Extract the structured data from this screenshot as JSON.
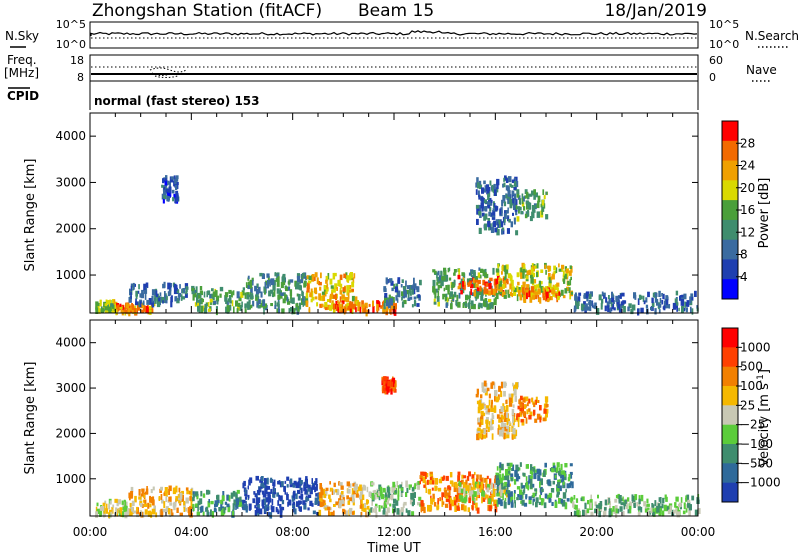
{
  "header": {
    "station": "Zhongshan Station (fitACF)",
    "beam": "Beam 15",
    "date": "18/Jan/2019"
  },
  "noise_panel": {
    "left_label": "N.Sky",
    "right_label": "N.Search",
    "left_ticks": [
      "10^5",
      "10^0"
    ],
    "right_ticks": [
      "10^5",
      "10^0"
    ]
  },
  "freq_panel": {
    "left_label_1": "Freq.",
    "left_label_2": "[MHz]",
    "left_ticks": [
      "18",
      "8"
    ],
    "right_label": "Nave",
    "right_ticks": [
      "60",
      "0"
    ]
  },
  "cpid_panel": {
    "label": "CPID",
    "text": "normal (fast stereo) 153"
  },
  "chart_data": [
    {
      "type": "heatmap",
      "quantity": "Power",
      "ylabel": "Slant Range [km]",
      "ylim": [
        180,
        4500
      ],
      "yticks": [
        1000,
        2000,
        3000,
        4000
      ],
      "xlim_hours": [
        0,
        24
      ],
      "xticks": [
        "00:00",
        "04:00",
        "08:00",
        "12:00",
        "16:00",
        "20:00",
        "00:00"
      ],
      "colorbar": {
        "label": "Power [dB]",
        "range": [
          0,
          32
        ],
        "ticks": [
          "4",
          "8",
          "12",
          "16",
          "20",
          "24",
          "28"
        ],
        "colors": [
          "#0000ff",
          "#1f3fb0",
          "#3a6ba0",
          "#3f8d6e",
          "#4a9f3a",
          "#d9d900",
          "#f0a000",
          "#f26a00",
          "#ff0000"
        ]
      },
      "regions": [
        {
          "t0": 0.2,
          "t1": 1.0,
          "r0": 200,
          "r1": 420,
          "v": 18
        },
        {
          "t0": 1.0,
          "t1": 2.5,
          "r0": 180,
          "r1": 350,
          "v": 26
        },
        {
          "t0": 1.5,
          "t1": 4.0,
          "r0": 350,
          "r1": 800,
          "v": 8
        },
        {
          "t0": 4.0,
          "t1": 6.0,
          "r0": 200,
          "r1": 700,
          "v": 14
        },
        {
          "t0": 6.0,
          "t1": 8.5,
          "r0": 200,
          "r1": 1000,
          "v": 12
        },
        {
          "t0": 8.5,
          "t1": 10.5,
          "r0": 200,
          "r1": 1000,
          "v": 22
        },
        {
          "t0": 9.5,
          "t1": 12.0,
          "r0": 180,
          "r1": 400,
          "v": 28
        },
        {
          "t0": 11.5,
          "t1": 13.0,
          "r0": 300,
          "r1": 900,
          "v": 10
        },
        {
          "t0": 13.5,
          "t1": 16.0,
          "r0": 300,
          "r1": 1100,
          "v": 14
        },
        {
          "t0": 14.5,
          "t1": 16.5,
          "r0": 600,
          "r1": 950,
          "v": 27
        },
        {
          "t0": 16.0,
          "t1": 19.0,
          "r0": 500,
          "r1": 1200,
          "v": 20
        },
        {
          "t0": 17.0,
          "t1": 18.5,
          "r0": 450,
          "r1": 700,
          "v": 26
        },
        {
          "t0": 19.0,
          "t1": 24.0,
          "r0": 200,
          "r1": 600,
          "v": 8
        },
        {
          "t0": 15.2,
          "t1": 16.8,
          "r0": 1900,
          "r1": 3100,
          "v": 8
        },
        {
          "t0": 16.8,
          "t1": 18.0,
          "r0": 2200,
          "r1": 2800,
          "v": 14
        },
        {
          "t0": 2.8,
          "t1": 3.4,
          "r0": 2600,
          "r1": 3100,
          "v": 6
        }
      ]
    },
    {
      "type": "heatmap",
      "quantity": "Velocity",
      "ylabel": "Slant Range [km]",
      "ylim": [
        180,
        4500
      ],
      "yticks": [
        1000,
        2000,
        3000,
        4000
      ],
      "xlim_hours": [
        0,
        24
      ],
      "xticks": [
        "00:00",
        "04:00",
        "08:00",
        "12:00",
        "16:00",
        "20:00",
        "00:00"
      ],
      "xlabel": "Time UT",
      "colorbar": {
        "label": "Velocity [m s",
        "label_sup": "-1",
        "label_end": "]",
        "ticks": [
          "1000",
          "500",
          "100",
          "25",
          "−25",
          "−100",
          "−500",
          "−1000"
        ],
        "colors": [
          "#1f3fb0",
          "#2f6a9a",
          "#3f8d6e",
          "#5bcc3a",
          "#c8c8b4",
          "#f5b800",
          "#f28000",
          "#ff4000",
          "#ff0000"
        ]
      },
      "regions": [
        {
          "t0": 0.2,
          "t1": 1.5,
          "r0": 180,
          "r1": 500,
          "v": 4
        },
        {
          "t0": 1.5,
          "t1": 4.0,
          "r0": 180,
          "r1": 800,
          "v": 5
        },
        {
          "t0": 4.0,
          "t1": 6.0,
          "r0": 200,
          "r1": 700,
          "v": 2
        },
        {
          "t0": 6.0,
          "t1": 9.0,
          "r0": 200,
          "r1": 1000,
          "v": 0
        },
        {
          "t0": 9.0,
          "t1": 11.0,
          "r0": 200,
          "r1": 900,
          "v": 5
        },
        {
          "t0": 11.0,
          "t1": 13.0,
          "r0": 200,
          "r1": 900,
          "v": 3
        },
        {
          "t0": 13.0,
          "t1": 16.0,
          "r0": 300,
          "r1": 1100,
          "v": 6
        },
        {
          "t0": 14.5,
          "t1": 16.5,
          "r0": 500,
          "r1": 900,
          "v": 4
        },
        {
          "t0": 16.0,
          "t1": 19.0,
          "r0": 400,
          "r1": 1300,
          "v": 2
        },
        {
          "t0": 19.0,
          "t1": 24.0,
          "r0": 200,
          "r1": 600,
          "v": 3
        },
        {
          "t0": 15.2,
          "t1": 16.8,
          "r0": 1900,
          "r1": 3100,
          "v": 5
        },
        {
          "t0": 16.8,
          "t1": 18.0,
          "r0": 2200,
          "r1": 2800,
          "v": 6
        },
        {
          "t0": 11.5,
          "t1": 12.0,
          "r0": 2900,
          "r1": 3200,
          "v": 7
        }
      ]
    }
  ]
}
